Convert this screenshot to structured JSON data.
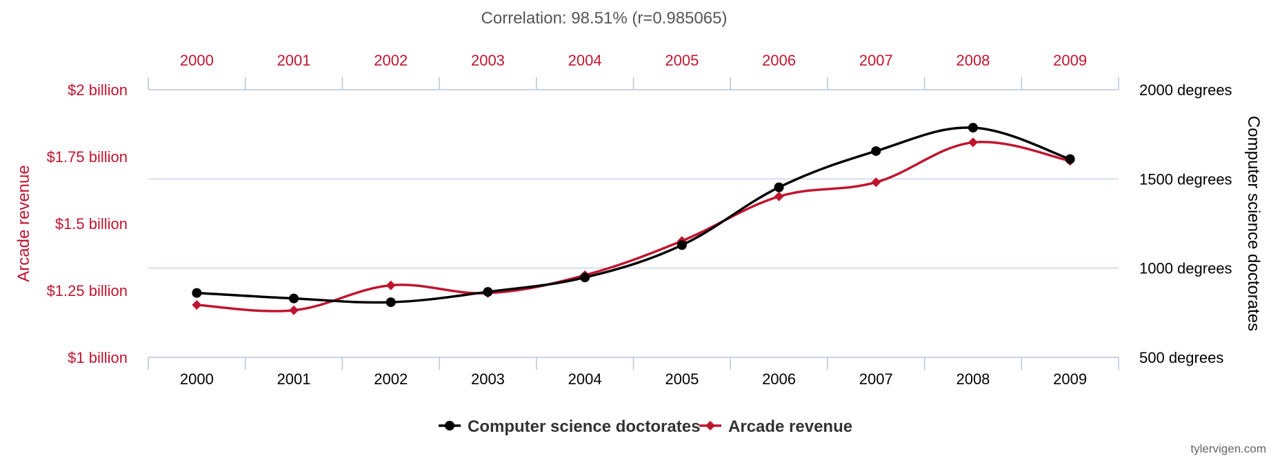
{
  "chart_data": {
    "type": "line",
    "title": "Correlation: 98.51% (r=0.985065)",
    "categories": [
      "2000",
      "2001",
      "2002",
      "2003",
      "2004",
      "2005",
      "2006",
      "2007",
      "2008",
      "2009"
    ],
    "series": [
      {
        "name": "Computer science doctorates",
        "axis": "right",
        "color": "#000000",
        "marker": "circle",
        "values": [
          861,
          830,
          809,
          867,
          948,
          1129,
          1453,
          1656,
          1787,
          1611
        ]
      },
      {
        "name": "Arcade revenue",
        "axis": "left",
        "color": "#c0152f",
        "marker": "diamond",
        "values": [
          1196000000,
          1176000000,
          1269000000,
          1240000000,
          1307000000,
          1435000000,
          1601000000,
          1654000000,
          1803000000,
          1734000000
        ]
      }
    ],
    "left_axis": {
      "label": "Arcade revenue",
      "range": [
        1000000000,
        2000000000
      ],
      "ticks": [
        1000000000,
        1250000000,
        1500000000,
        1750000000,
        2000000000
      ],
      "tick_labels": [
        "$1 billion",
        "$1.25 billion",
        "$1.5 billion",
        "$1.75 billion",
        "$2 billion"
      ],
      "color": "#c0152f"
    },
    "right_axis": {
      "label": "Computer science doctorates",
      "range": [
        500,
        2000
      ],
      "ticks": [
        500,
        1000,
        1500,
        2000
      ],
      "tick_labels": [
        "500 degrees",
        "1000 degrees",
        "1500 degrees",
        "2000 degrees"
      ],
      "color": "#000000"
    },
    "top_axis": {
      "color": "#c0152f"
    },
    "bottom_axis": {
      "color": "#000000"
    },
    "grid": true,
    "legend_position": "bottom-center",
    "credit": "tylervigen.com"
  }
}
